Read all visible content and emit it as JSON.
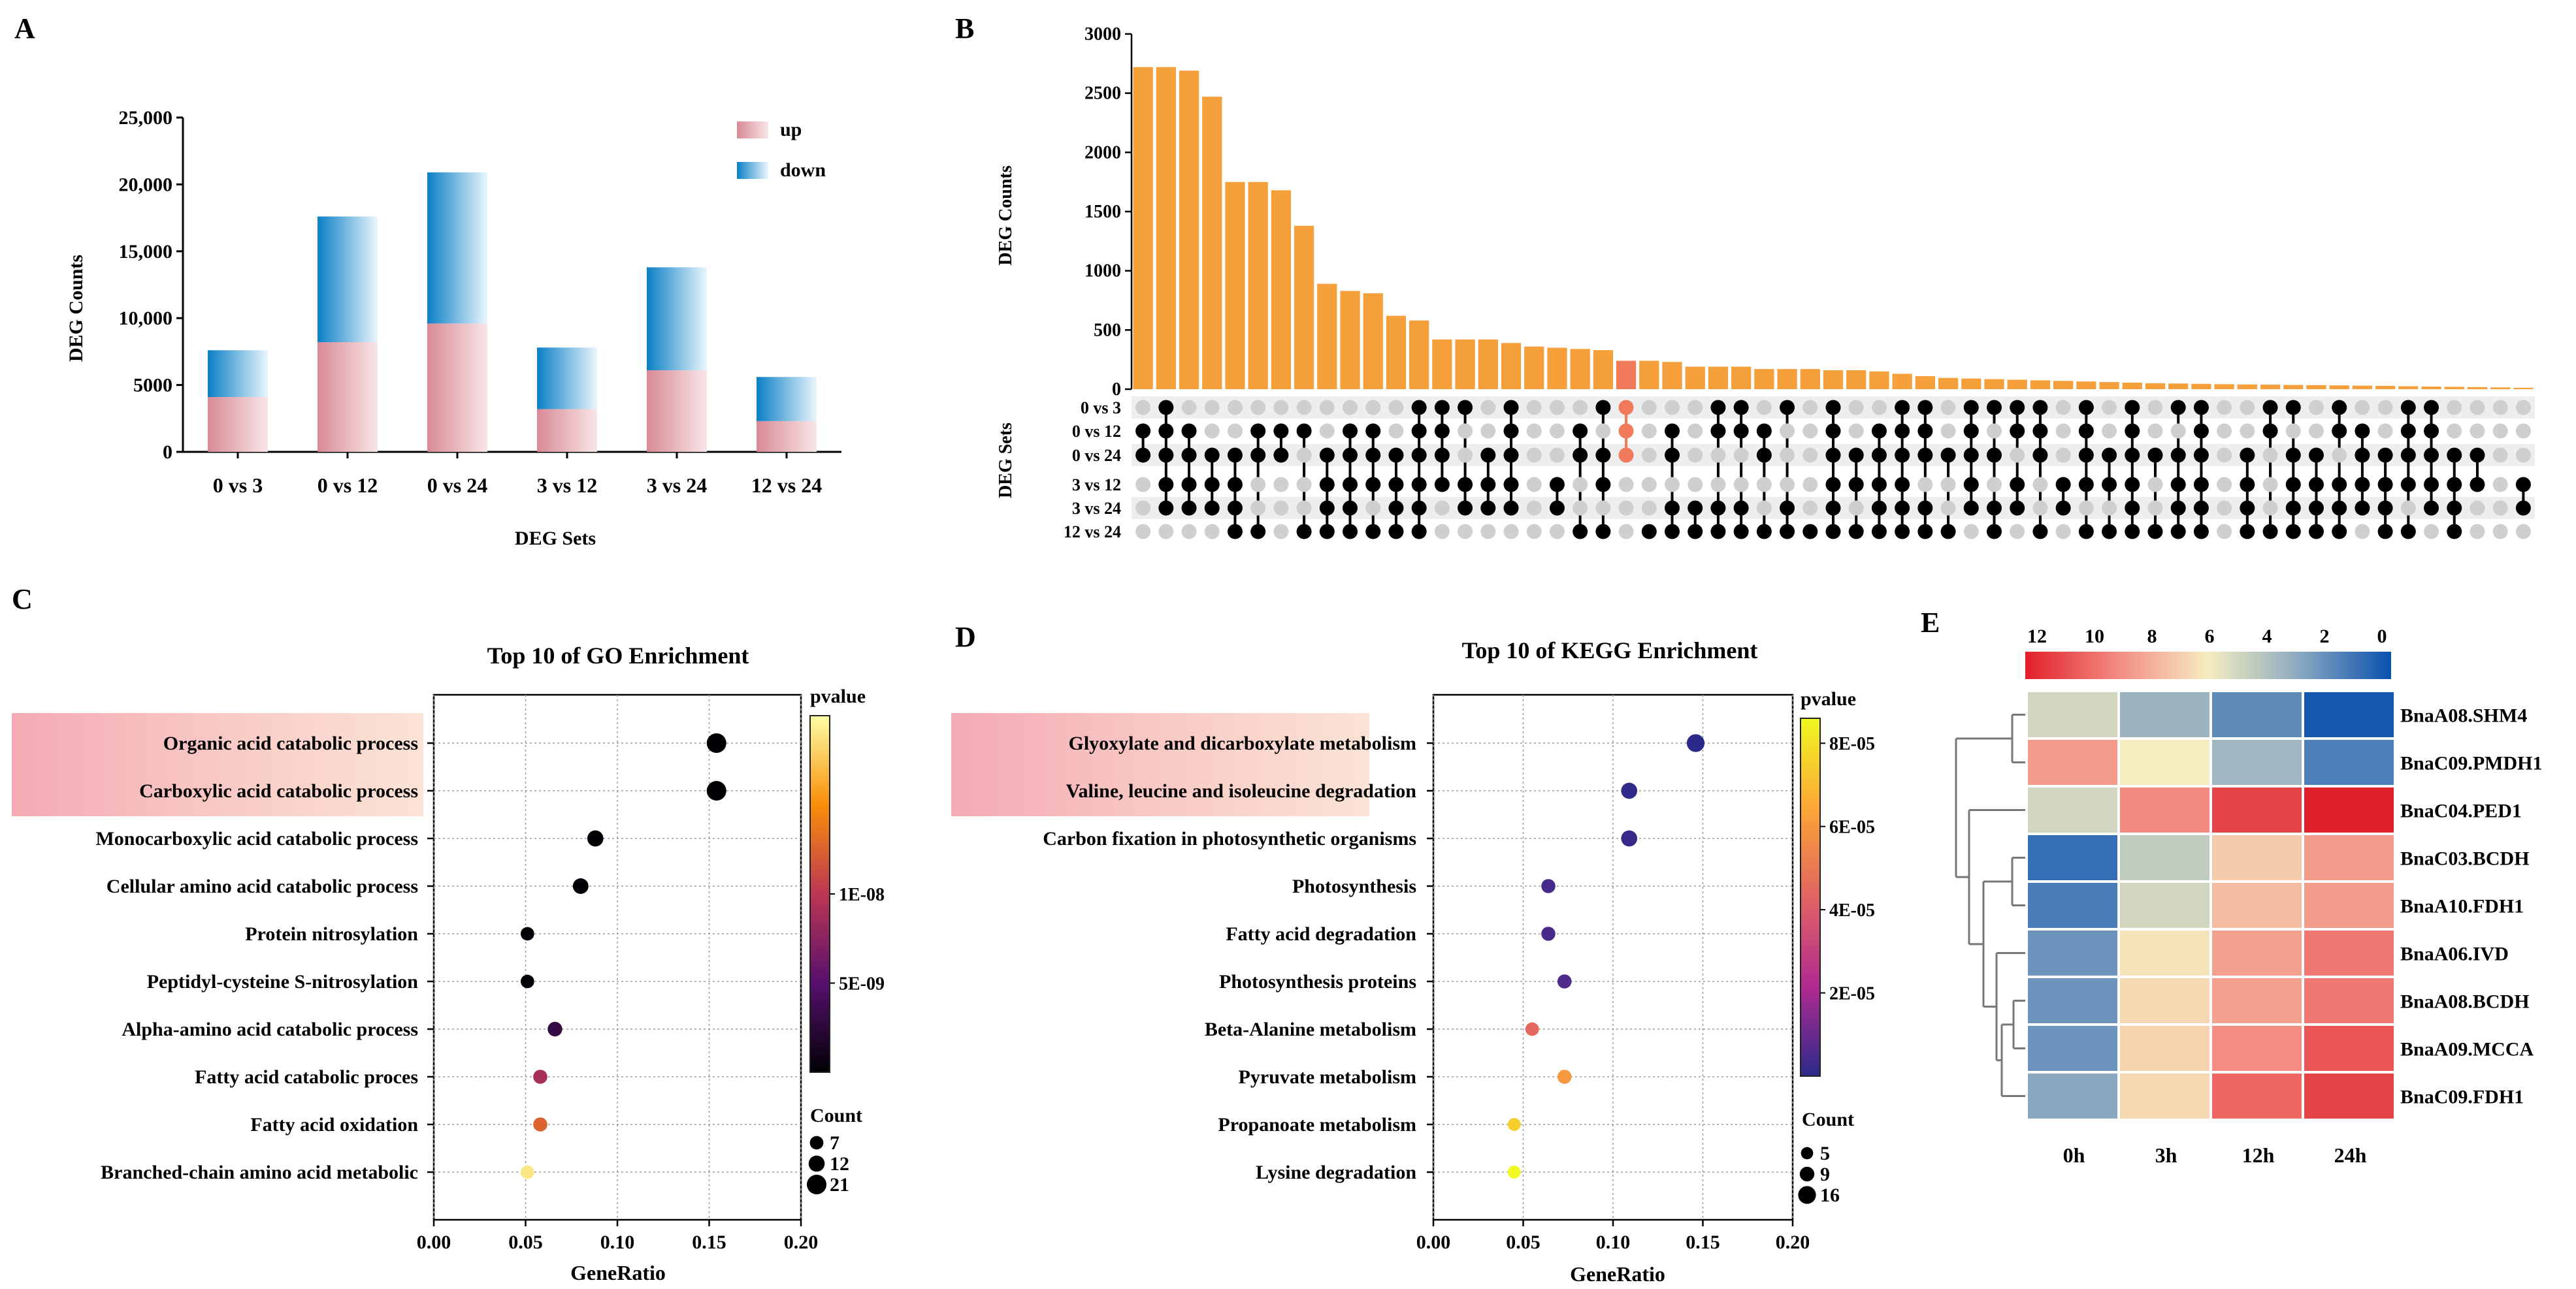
{
  "colors": {
    "up_from": "#d88a94",
    "up_to": "#f7e4e6",
    "down_from": "#0a82c8",
    "down_to": "#e9f5fc",
    "upset_bar": "#f5a03a",
    "upset_hl": "#f07a5a",
    "dot_on": "#000000",
    "dot_off": "#cfcfcf",
    "hl_band": "#f3b9c0"
  },
  "panels": {
    "A": {
      "letter": "A"
    },
    "B": {
      "letter": "B"
    },
    "C": {
      "letter": "C"
    },
    "D": {
      "letter": "D"
    },
    "E": {
      "letter": "E"
    }
  },
  "chart_data": [
    {
      "panel": "A",
      "type": "bar",
      "stacked": true,
      "categories": [
        "0 vs 3",
        "0 vs 12",
        "0 vs 24",
        "3 vs 12",
        "3 vs 24",
        "12 vs 24"
      ],
      "series": [
        {
          "name": "up",
          "values": [
            4100,
            8200,
            9600,
            3200,
            6100,
            2300
          ]
        },
        {
          "name": "down",
          "values": [
            3500,
            9400,
            11300,
            4600,
            7700,
            3300
          ]
        }
      ],
      "title": "",
      "xlabel": "DEG Sets",
      "ylabel": "DEG Counts",
      "ylim": [
        0,
        25000
      ],
      "yticks": [
        "0",
        "5000",
        "10,000",
        "15,000",
        "20,000",
        "25,000"
      ],
      "ytick_values": [
        0,
        5000,
        10000,
        15000,
        20000,
        25000
      ],
      "legend": [
        "up",
        "down"
      ],
      "legend_position": "top-right"
    },
    {
      "panel": "B",
      "type": "upset",
      "ylabel": "DEG Counts",
      "set_label": "DEG Sets",
      "ylim": [
        0,
        3000
      ],
      "yticks": [
        0,
        500,
        1000,
        1500,
        2000,
        2500,
        3000
      ],
      "sets": [
        "0 vs 3",
        "0 vs 12",
        "0 vs 24",
        "3 vs 12",
        "3 vs 24",
        "12 vs 24"
      ],
      "highlight_index": 21,
      "bars": [
        2720,
        2720,
        2690,
        2470,
        1750,
        1750,
        1680,
        1380,
        890,
        830,
        810,
        620,
        580,
        420,
        420,
        420,
        390,
        360,
        350,
        340,
        330,
        240,
        240,
        230,
        190,
        190,
        190,
        170,
        170,
        170,
        160,
        160,
        150,
        130,
        110,
        95,
        90,
        85,
        80,
        75,
        70,
        65,
        60,
        55,
        50,
        48,
        45,
        42,
        40,
        38,
        36,
        34,
        32,
        30,
        28,
        25,
        22,
        20,
        18,
        15,
        12
      ],
      "membership": [
        [
          0,
          1,
          1,
          0,
          0,
          0
        ],
        [
          1,
          1,
          1,
          1,
          1,
          0
        ],
        [
          0,
          1,
          1,
          1,
          1,
          0
        ],
        [
          0,
          0,
          1,
          1,
          1,
          0
        ],
        [
          0,
          0,
          1,
          1,
          1,
          1
        ],
        [
          0,
          1,
          1,
          0,
          0,
          1
        ],
        [
          0,
          1,
          1,
          0,
          0,
          0
        ],
        [
          0,
          1,
          0,
          0,
          0,
          1
        ],
        [
          0,
          0,
          1,
          1,
          1,
          1
        ],
        [
          0,
          1,
          1,
          1,
          1,
          1
        ],
        [
          0,
          1,
          1,
          1,
          0,
          1
        ],
        [
          0,
          0,
          1,
          1,
          1,
          1
        ],
        [
          1,
          1,
          1,
          1,
          1,
          1
        ],
        [
          1,
          1,
          1,
          1,
          0,
          0
        ],
        [
          1,
          0,
          0,
          1,
          1,
          0
        ],
        [
          0,
          0,
          1,
          1,
          1,
          0
        ],
        [
          1,
          1,
          1,
          1,
          1,
          0
        ],
        [
          0,
          0,
          0,
          0,
          0,
          0
        ],
        [
          0,
          0,
          0,
          1,
          1,
          0
        ],
        [
          0,
          1,
          1,
          0,
          0,
          1
        ],
        [
          1,
          0,
          1,
          1,
          0,
          1
        ],
        [
          1,
          1,
          1,
          0,
          0,
          0
        ],
        [
          0,
          0,
          0,
          0,
          0,
          1
        ],
        [
          0,
          1,
          1,
          0,
          1,
          1
        ],
        [
          0,
          0,
          0,
          0,
          1,
          1
        ],
        [
          1,
          1,
          0,
          0,
          1,
          1
        ],
        [
          1,
          1,
          0,
          0,
          1,
          1
        ],
        [
          0,
          1,
          1,
          0,
          0,
          1
        ],
        [
          1,
          0,
          0,
          0,
          1,
          1
        ],
        [
          0,
          0,
          0,
          0,
          0,
          1
        ],
        [
          1,
          1,
          1,
          1,
          1,
          1
        ],
        [
          0,
          0,
          1,
          1,
          0,
          1
        ],
        [
          0,
          1,
          1,
          1,
          1,
          1
        ],
        [
          1,
          1,
          1,
          1,
          1,
          1
        ],
        [
          1,
          1,
          1,
          0,
          1,
          1
        ],
        [
          0,
          0,
          1,
          0,
          0,
          1
        ],
        [
          1,
          1,
          1,
          1,
          1,
          0
        ],
        [
          1,
          0,
          1,
          0,
          1,
          1
        ],
        [
          1,
          1,
          0,
          1,
          1,
          0
        ],
        [
          1,
          1,
          1,
          0,
          0,
          1
        ],
        [
          0,
          0,
          0,
          1,
          1,
          0
        ],
        [
          1,
          1,
          1,
          1,
          0,
          1
        ],
        [
          0,
          0,
          1,
          1,
          0,
          1
        ],
        [
          1,
          1,
          1,
          1,
          1,
          1
        ],
        [
          0,
          0,
          1,
          0,
          0,
          1
        ],
        [
          1,
          0,
          1,
          1,
          1,
          1
        ],
        [
          1,
          1,
          1,
          1,
          1,
          1
        ],
        [
          0,
          0,
          0,
          0,
          0,
          0
        ],
        [
          0,
          0,
          1,
          1,
          1,
          1
        ],
        [
          1,
          1,
          0,
          0,
          0,
          1
        ],
        [
          1,
          0,
          1,
          1,
          1,
          1
        ],
        [
          0,
          0,
          1,
          1,
          1,
          1
        ],
        [
          1,
          1,
          0,
          1,
          1,
          1
        ],
        [
          0,
          1,
          1,
          1,
          1,
          0
        ],
        [
          0,
          0,
          1,
          1,
          1,
          1
        ],
        [
          1,
          1,
          1,
          1,
          0,
          1
        ],
        [
          1,
          1,
          1,
          1,
          1,
          0
        ],
        [
          0,
          0,
          1,
          1,
          1,
          1
        ],
        [
          0,
          0,
          1,
          1,
          0,
          0
        ],
        [
          0,
          0,
          0,
          0,
          0,
          0
        ],
        [
          0,
          0,
          0,
          1,
          1,
          0
        ]
      ]
    },
    {
      "panel": "C",
      "type": "scatter",
      "title": "Top 10 of GO Enrichment",
      "xlabel": "GeneRatio",
      "xlim": [
        0,
        0.2
      ],
      "xticks": [
        "0.00",
        "0.05",
        "0.10",
        "0.15",
        "0.20"
      ],
      "xtick_values": [
        0,
        0.05,
        0.1,
        0.15,
        0.2
      ],
      "categories": [
        "Organic acid catabolic process",
        "Carboxylic acid catabolic process",
        "Monocarboxylic acid catabolic process",
        "Cellular amino acid catabolic process",
        "Protein nitrosylation",
        "Peptidyl-cysteine S-nitrosylation",
        "Alpha-amino acid catabolic process",
        "Fatty acid catabolic proces",
        "Fatty acid oxidation",
        "Branched-chain amino acid metabolic"
      ],
      "highlighted": [
        0,
        1
      ],
      "x": [
        0.154,
        0.154,
        0.088,
        0.08,
        0.051,
        0.051,
        0.066,
        0.058,
        0.058,
        0.051
      ],
      "count": [
        21,
        21,
        12,
        11,
        7,
        7,
        9,
        8,
        8,
        7
      ],
      "pvalue": [
        1e-12,
        1e-12,
        2e-11,
        5e-11,
        1e-10,
        1e-10,
        3e-09,
        9e-09,
        1.25e-08,
        1.9e-08
      ],
      "colorbar_title": "pvalue",
      "colorbar_ticks": [
        "1E-08",
        "5E-09"
      ],
      "colorbar_tick_values": [
        1e-08,
        5e-09
      ],
      "colorbar_range": [
        0,
        2e-08
      ],
      "size_title": "Count",
      "size_legend": [
        "7",
        "12",
        "21"
      ],
      "size_values": [
        7,
        12,
        21
      ]
    },
    {
      "panel": "D",
      "type": "scatter",
      "title": "Top 10 of KEGG Enrichment",
      "xlabel": "GeneRatio",
      "xlim": [
        0,
        0.2
      ],
      "xticks": [
        "0.00",
        "0.05",
        "0.10",
        "0.15",
        "0.20"
      ],
      "xtick_values": [
        0,
        0.05,
        0.1,
        0.15,
        0.2
      ],
      "categories": [
        "Glyoxylate and dicarboxylate metabolism",
        "Valine, leucine and isoleucine degradation",
        "Carbon fixation in photosynthetic organisms",
        "Photosynthesis",
        "Fatty acid degradation",
        "Photosynthesis proteins",
        "Beta-Alanine metabolism",
        "Pyruvate metabolism",
        "Propanoate metabolism",
        "Lysine degradation"
      ],
      "highlighted": [
        0,
        1
      ],
      "x": [
        0.146,
        0.109,
        0.109,
        0.064,
        0.064,
        0.073,
        0.055,
        0.073,
        0.045,
        0.045
      ],
      "count": [
        16,
        12,
        12,
        8,
        8,
        8,
        7,
        8,
        6,
        6
      ],
      "pvalue": [
        1e-07,
        1e-06,
        2e-06,
        4e-06,
        5e-06,
        6e-06,
        4.5e-05,
        6e-05,
        7.5e-05,
        8.6e-05
      ],
      "colorbar_title": "pvalue",
      "colorbar_ticks": [
        "8E-05",
        "6E-05",
        "4E-05",
        "2E-05"
      ],
      "colorbar_tick_values": [
        8e-05,
        6e-05,
        4e-05,
        2e-05
      ],
      "colorbar_range": [
        0,
        8.6e-05
      ],
      "size_title": "Count",
      "size_legend": [
        "5",
        "9",
        "16"
      ],
      "size_values": [
        5,
        9,
        16
      ]
    },
    {
      "panel": "E",
      "type": "heatmap",
      "columns": [
        "0h",
        "3h",
        "12h",
        "24h"
      ],
      "rows": [
        "BnaA08.SHM4",
        "BnaC09.PMDH1",
        "BnaC04.PED1",
        "BnaC03.BCDH",
        "BnaA10.FDH1",
        "BnaA06.IVD",
        "BnaA08.BCDH",
        "BnaA09.MCCA",
        "BnaC09.FDH1"
      ],
      "values": [
        [
          5.0,
          3.5,
          2.0,
          0.3
        ],
        [
          8.5,
          6.0,
          3.6,
          1.6
        ],
        [
          5.0,
          9.0,
          11.0,
          12.0
        ],
        [
          1.0,
          4.5,
          7.0,
          8.5
        ],
        [
          1.5,
          5.0,
          7.5,
          8.5
        ],
        [
          2.3,
          6.3,
          8.3,
          9.5
        ],
        [
          2.3,
          6.6,
          8.3,
          9.5
        ],
        [
          2.3,
          6.8,
          8.9,
          10.5
        ],
        [
          3.0,
          6.6,
          10.0,
          11.0
        ]
      ],
      "colorbar_ticks": [
        "12",
        "10",
        "8",
        "6",
        "4",
        "2",
        "0"
      ],
      "colorbar_tick_values": [
        12,
        10,
        8,
        6,
        4,
        2,
        0
      ],
      "colorbar_range": [
        0,
        12
      ]
    }
  ]
}
